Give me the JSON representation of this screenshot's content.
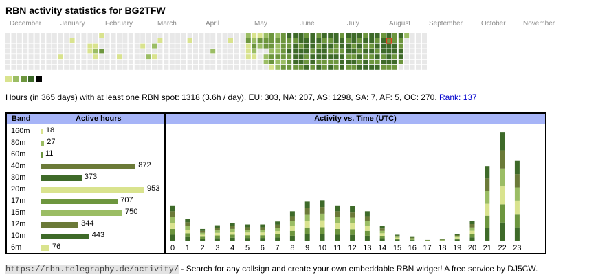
{
  "title": "RBN activity statistics for BG2TFW",
  "months": [
    "December",
    "January",
    "February",
    "March",
    "April",
    "May",
    "June",
    "July",
    "August",
    "September",
    "October",
    "November"
  ],
  "colors": {
    "empty": "#e8e8e8",
    "level1": "#d9e38e",
    "level2": "#9bbd64",
    "level3": "#6d963e",
    "level4": "#3e6a29",
    "level5": "#000000",
    "today_border": "#e04020",
    "header_bg": "#a6b4f7"
  },
  "legend_levels": [
    "level1",
    "level2",
    "level3",
    "level4",
    "level5"
  ],
  "heatmap_weeks": [
    "0000000",
    "0000000",
    "0000000",
    "0000000",
    "0000000",
    "0000000",
    "0000000",
    "0000000",
    "0000000",
    "0000100",
    "0000000",
    "0100000",
    "0000000",
    "0000000",
    "0011000",
    "0012100",
    "1003000",
    "0000000",
    "0000000",
    "0000100",
    "0000000",
    "0000000",
    "0000000",
    "0010000",
    "0000200",
    "0020100",
    "0100000",
    "0000000",
    "0000000",
    "0000000",
    "0000000",
    "0100000",
    "0000000",
    "0000000",
    "0000000",
    "0002000",
    "0000000",
    "0000000",
    "0100000",
    "0000000",
    "0000000",
    "2311100",
    "1232100",
    "1320000",
    "2330220",
    "3332331",
    "2322322",
    "3333323",
    "4334333",
    "4344443",
    "4434443",
    "3444334",
    "4443443",
    "3434434",
    "4344433",
    "4343434",
    "4433433",
    "3443444",
    "4344343",
    "4434343",
    "4343434",
    "3434344",
    "4434334",
    "4343434",
    "3444343",
    "4344443",
    "3344343",
    "4334430",
    "2000000",
    "0000000",
    "0000000",
    "0000000"
  ],
  "summary": {
    "text": "Hours (in 365 days) with at least one RBN spot: 1318 (3.6h / day). EU: 303, NA: 207, AS: 1298, SA: 7, AF: 5, OC: 270.",
    "rank_label": "Rank: 137"
  },
  "band_table": {
    "header_band": "Band",
    "header_hours": "Active hours",
    "rows": [
      {
        "band": "160m",
        "hours": 18,
        "color": "#d9e38e"
      },
      {
        "band": "80m",
        "hours": 27,
        "color": "#9bbd64"
      },
      {
        "band": "60m",
        "hours": 11,
        "color": "#6d963e"
      },
      {
        "band": "40m",
        "hours": 872,
        "color": "#6b7a38"
      },
      {
        "band": "30m",
        "hours": 373,
        "color": "#3e6a29"
      },
      {
        "band": "20m",
        "hours": 953,
        "color": "#d9e38e"
      },
      {
        "band": "17m",
        "hours": 707,
        "color": "#6d963e"
      },
      {
        "band": "15m",
        "hours": 750,
        "color": "#9bbd64"
      },
      {
        "band": "12m",
        "hours": 344,
        "color": "#6b7a38"
      },
      {
        "band": "10m",
        "hours": 443,
        "color": "#3e6a29"
      },
      {
        "band": "6m",
        "hours": 76,
        "color": "#d9e38e"
      }
    ]
  },
  "chart_data": {
    "type": "bar",
    "title": "Activity vs. Time (UTC)",
    "xlabel": "",
    "ylabel": "",
    "categories": [
      "0",
      "1",
      "2",
      "3",
      "4",
      "5",
      "6",
      "7",
      "8",
      "9",
      "10",
      "11",
      "12",
      "13",
      "14",
      "15",
      "16",
      "17",
      "18",
      "19",
      "20",
      "21",
      "22",
      "23"
    ],
    "values": [
      48,
      30,
      16,
      21,
      24,
      22,
      22,
      26,
      40,
      54,
      55,
      48,
      47,
      40,
      20,
      8,
      5,
      1,
      2,
      9,
      27,
      102,
      148,
      109
    ],
    "stack_colors": [
      "#3e6a29",
      "#6d963e",
      "#d9e38e",
      "#9bbd64",
      "#6b7a38",
      "#3e6a29",
      "#9bbd64"
    ],
    "ylim": [
      0,
      150
    ]
  },
  "footer": {
    "url": "https://rbn.telegraphy.de/activity/",
    "text": " - Search for any callsign and create your own embeddable RBN widget! A free service by DJ5CW."
  }
}
